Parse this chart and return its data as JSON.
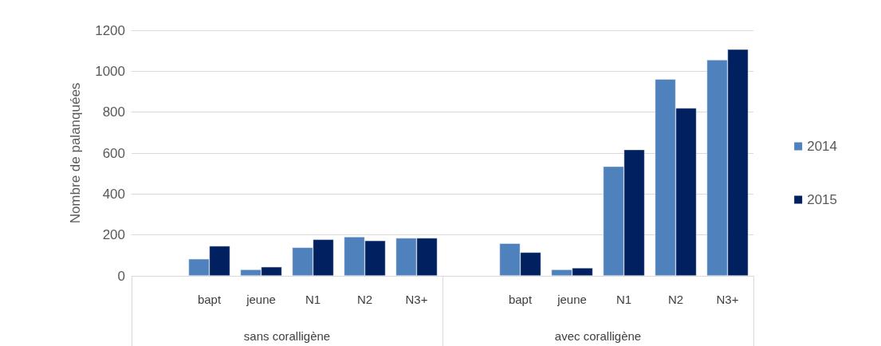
{
  "chart_data": {
    "type": "bar",
    "ylabel": "Nombre de palanquées",
    "categories": [
      null,
      "bapt",
      "jeune",
      "N1",
      "N2",
      "N3+",
      null,
      "bapt",
      "jeune",
      "N1",
      "N2",
      "N3+"
    ],
    "series": [
      {
        "name": "2014",
        "color": "#4f81bd",
        "values": [
          null,
          83,
          31,
          139,
          191,
          185,
          null,
          159,
          31,
          535,
          961,
          1056
        ]
      },
      {
        "name": "2015",
        "color": "#002060",
        "values": [
          null,
          146,
          44,
          178,
          172,
          185,
          null,
          115,
          39,
          617,
          820,
          1107
        ]
      }
    ],
    "annotations": [
      "sans coralligène",
      "avec coralligène"
    ],
    "ylim": [
      0,
      1200
    ],
    "yticks": [
      0,
      200,
      400,
      600,
      800,
      1000,
      1200
    ],
    "grid": "y",
    "legend": "right"
  }
}
